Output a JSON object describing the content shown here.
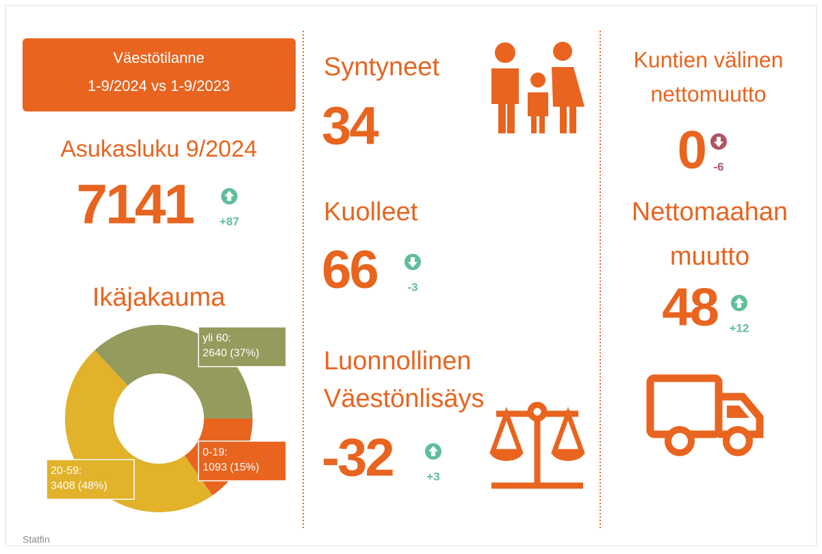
{
  "header": {
    "lines": [
      "Väestötilanne",
      "1-9/2024 vs 1-9/2023"
    ]
  },
  "population": {
    "title": "Asukasluku 9/2024",
    "value": 7141,
    "change": "+87",
    "direction": "up",
    "change_color": "#5fbf99"
  },
  "chart_data": {
    "type": "donut",
    "title": "Ikäjakauma",
    "categories": [
      "0-19:",
      "20-59:",
      "yli 60:"
    ],
    "values": [
      1093,
      3408,
      2640
    ],
    "value_labels": [
      "1093 (15%)",
      "3408 (48%)",
      "2640 (37%)"
    ],
    "colors": [
      "#e8641f",
      "#e1b22a",
      "#949b5c"
    ]
  },
  "births": {
    "title": "Syntyneet",
    "value": 34
  },
  "deaths": {
    "title": "Kuolleet",
    "value": 66,
    "change": "-3",
    "direction": "down",
    "change_color": "#5fbf99"
  },
  "natural_growth": {
    "title": [
      "Luonnollinen",
      "Väestönlisäys"
    ],
    "value": -32,
    "change": "+3",
    "direction": "up",
    "change_color": "#5fbf99"
  },
  "migration": {
    "title": [
      "Kuntien välinen",
      "nettomuutto"
    ],
    "value": 0,
    "change": "-6",
    "direction": "down",
    "change_color": "#b05563"
  },
  "immigration": {
    "title": [
      "Nettomaahan",
      "muutto"
    ],
    "value": 48,
    "change": "+12",
    "direction": "up",
    "change_color": "#5fbf99"
  },
  "footer": "Statfin"
}
